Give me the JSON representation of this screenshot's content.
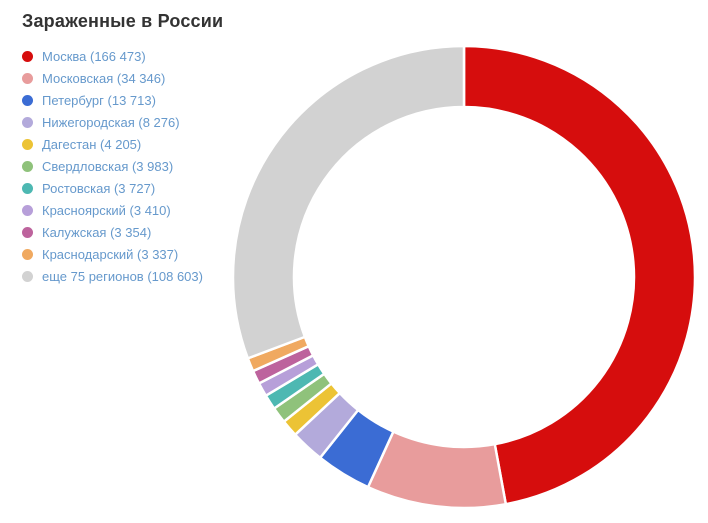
{
  "header": {
    "title": "Зараженные в России",
    "title_color": "#333333"
  },
  "chart_data": {
    "type": "pie",
    "subtype": "donut",
    "title": "Зараженные в России",
    "legend_position": "left",
    "legend_text_color": "#6699cc",
    "start_angle_deg": 0,
    "direction": "clockwise",
    "slices": [
      {
        "label": "Москва",
        "value": 166473,
        "legend_label": "Москва (166 473)",
        "color": "#d60d0d"
      },
      {
        "label": "Московская",
        "value": 34346,
        "legend_label": "Московская (34 346)",
        "color": "#e89c9c"
      },
      {
        "label": "Петербург",
        "value": 13713,
        "legend_label": "Петербург (13 713)",
        "color": "#3b6cd4"
      },
      {
        "label": "Нижегородская",
        "value": 8276,
        "legend_label": "Нижегородская (8 276)",
        "color": "#b3aadb"
      },
      {
        "label": "Дагестан",
        "value": 4205,
        "legend_label": "Дагестан (4 205)",
        "color": "#ecc335"
      },
      {
        "label": "Свердловская",
        "value": 3983,
        "legend_label": "Свердловская (3 983)",
        "color": "#8fc27b"
      },
      {
        "label": "Ростовская",
        "value": 3727,
        "legend_label": "Ростовская (3 727)",
        "color": "#4db8b2"
      },
      {
        "label": "Красноярский",
        "value": 3410,
        "legend_label": "Красноярский (3 410)",
        "color": "#b79fd9"
      },
      {
        "label": "Калужская",
        "value": 3354,
        "legend_label": "Калужская (3 354)",
        "color": "#bd639d"
      },
      {
        "label": "Краснодарский",
        "value": 3337,
        "legend_label": "Краснодарский (3 337)",
        "color": "#f0a960"
      },
      {
        "label": "еще 75 регионов",
        "value": 108603,
        "legend_label": "еще 75 регионов (108 603)",
        "color": "#d2d2d2"
      }
    ]
  }
}
